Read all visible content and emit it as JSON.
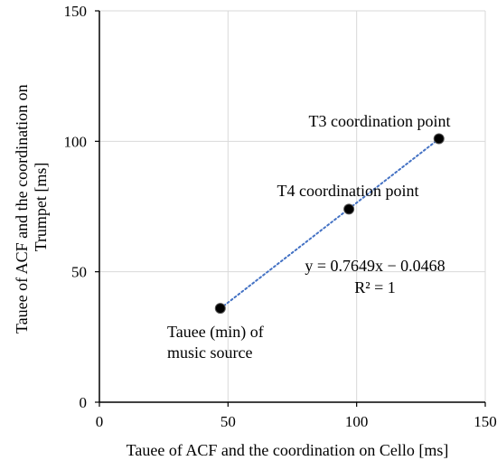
{
  "chart_data": {
    "type": "scatter",
    "xlabel": "Tauee of ACF and the coordination on Cello [ms]",
    "ylabel_lines": [
      "Tauee of ACF  and the coordination on",
      "Trumpet [ms]"
    ],
    "xlim": [
      0,
      150
    ],
    "ylim": [
      0,
      150
    ],
    "x_ticks": [
      0,
      50,
      100,
      150
    ],
    "y_ticks": [
      0,
      50,
      100,
      150
    ],
    "grid": true,
    "points": [
      {
        "x": 47,
        "y": 36
      },
      {
        "x": 97,
        "y": 74
      },
      {
        "x": 132,
        "y": 101
      }
    ],
    "trendline": {
      "style": "dotted",
      "slope": 0.7649,
      "intercept": -0.0468,
      "x_range": [
        47,
        132
      ],
      "equation_label": "y = 0.7649x − 0.0468",
      "r2_label": "R² = 1"
    },
    "annotations": [
      {
        "lines": [
          "T3 coordination point"
        ]
      },
      {
        "lines": [
          "T4 coordination point"
        ]
      },
      {
        "lines": [
          "Tauee (min) of",
          "music source"
        ]
      }
    ],
    "colors": {
      "marker": "#000000",
      "trendline": "#4472C4",
      "grid": "#d9d9d9",
      "axis": "#000000"
    }
  }
}
